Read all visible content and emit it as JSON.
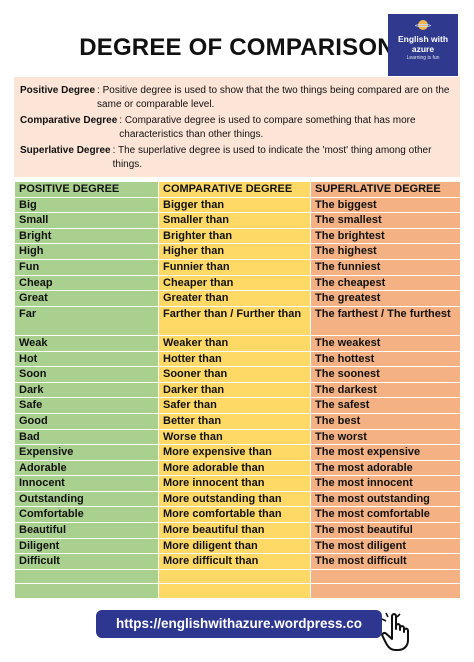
{
  "title": "DEGREE OF COMPARISON",
  "logo": {
    "line1": "English with azure",
    "line2": "Learning is fun"
  },
  "definitions": [
    {
      "term": "Positive Degree",
      "text": ": Positive degree is used to show that the two things being compared are on the same or comparable level."
    },
    {
      "term": "Comparative Degree",
      "text": ": Comparative degree is used to compare something that has more characteristics than other things."
    },
    {
      "term": "Superlative Degree",
      "text": ": The superlative degree is used to indicate the 'most' thing among other things."
    }
  ],
  "table": {
    "headers": [
      "POSITIVE DEGREE",
      "COMPARATIVE DEGREE",
      "SUPERLATIVE DEGREE"
    ],
    "rows": [
      [
        "Big",
        "Bigger than",
        "The biggest"
      ],
      [
        "Small",
        "Smaller than",
        "The smallest"
      ],
      [
        "Bright",
        "Brighter than",
        "The brightest"
      ],
      [
        "High",
        "Higher than",
        "The highest"
      ],
      [
        "Fun",
        "Funnier than",
        "The funniest"
      ],
      [
        "Cheap",
        "Cheaper than",
        "The cheapest"
      ],
      [
        "Great",
        "Greater than",
        "The greatest"
      ],
      [
        "Far",
        "Farther than / Further than",
        "The farthest / The furthest"
      ],
      [
        "Weak",
        "Weaker than",
        "The weakest"
      ],
      [
        "Hot",
        "Hotter than",
        "The hottest"
      ],
      [
        "Soon",
        "Sooner than",
        "The soonest"
      ],
      [
        "Dark",
        "Darker than",
        "The darkest"
      ],
      [
        "Safe",
        "Safer than",
        "The safest"
      ],
      [
        "Good",
        "Better than",
        "The best"
      ],
      [
        "Bad",
        "Worse than",
        "The worst"
      ],
      [
        "Expensive",
        "More expensive than",
        "The most expensive"
      ],
      [
        "Adorable",
        "More adorable than",
        "The most adorable"
      ],
      [
        "Innocent",
        "More innocent than",
        "The most innocent"
      ],
      [
        "Outstanding",
        "More outstanding than",
        "The most outstanding"
      ],
      [
        "Comfortable",
        "More comfortable than",
        "The most comfortable"
      ],
      [
        "Beautiful",
        "More beautiful than",
        "The most beautiful"
      ],
      [
        "Diligent",
        "More diligent than",
        "The most diligent"
      ],
      [
        "Difficult",
        "More difficult than",
        "The most difficult"
      ],
      [
        "",
        "",
        ""
      ],
      [
        "",
        "",
        ""
      ]
    ]
  },
  "footer": {
    "url": "https://englishwithazure.wordpress.co"
  },
  "icons": {
    "logo": "planet-icon",
    "cursor": "hand-pointer-icon"
  },
  "colors": {
    "positive": "#a9d08e",
    "comparative": "#ffd966",
    "superlative": "#f4b183",
    "definitions_bg": "#fce4d6",
    "brand": "#2e3790"
  }
}
